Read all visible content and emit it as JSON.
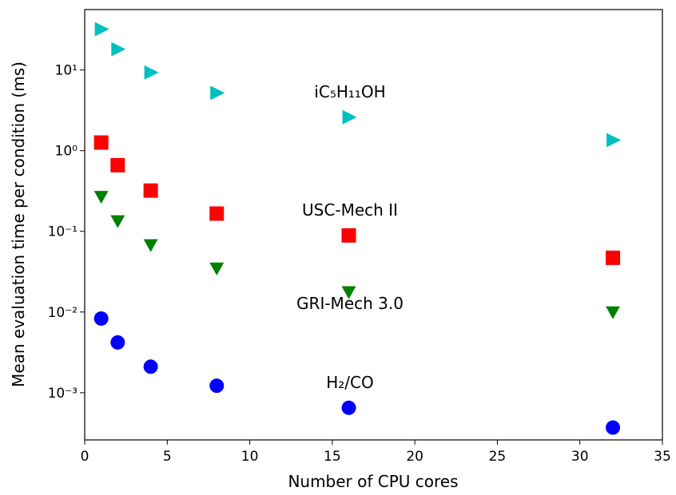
{
  "chart_data": {
    "type": "scatter",
    "x_label": "Number of CPU cores",
    "y_label": "Mean evaluation time per condition (ms)",
    "xlim": [
      0,
      35
    ],
    "xticks": [
      0,
      5,
      10,
      15,
      20,
      25,
      30,
      35
    ],
    "ylim": [
      0.00026,
      56
    ],
    "log_y": true,
    "yticks": [
      {
        "value": 0.001,
        "label": "10⁻³"
      },
      {
        "value": 0.01,
        "label": "10⁻²"
      },
      {
        "value": 0.1,
        "label": "10⁻¹"
      },
      {
        "value": 1,
        "label": "10⁰"
      },
      {
        "value": 10,
        "label": "10¹"
      }
    ],
    "legend": false,
    "series": [
      {
        "name": "iC₅H₁₁OH",
        "color": "#00bfbf",
        "marker": "triangle-right",
        "x": [
          1,
          2,
          4,
          8,
          16,
          32
        ],
        "values": [
          32,
          18.1,
          9.3,
          5.2,
          2.6,
          1.35
        ]
      },
      {
        "name": "USC-Mech II",
        "color": "#ff0000",
        "marker": "square",
        "x": [
          1,
          2,
          4,
          8,
          16,
          32
        ],
        "values": [
          1.26,
          0.66,
          0.32,
          0.166,
          0.089,
          0.047
        ]
      },
      {
        "name": "GRI-Mech 3.0",
        "color": "#008000",
        "marker": "triangle-down",
        "x": [
          1,
          2,
          4,
          8,
          16,
          32
        ],
        "values": [
          0.27,
          0.135,
          0.068,
          0.035,
          0.0178,
          0.01
        ]
      },
      {
        "name": "H₂/CO",
        "color": "#0000ff",
        "marker": "circle",
        "x": [
          1,
          2,
          4,
          8,
          16,
          32
        ],
        "values": [
          0.0083,
          0.0042,
          0.0021,
          0.00122,
          0.00065,
          0.00037
        ]
      }
    ]
  }
}
